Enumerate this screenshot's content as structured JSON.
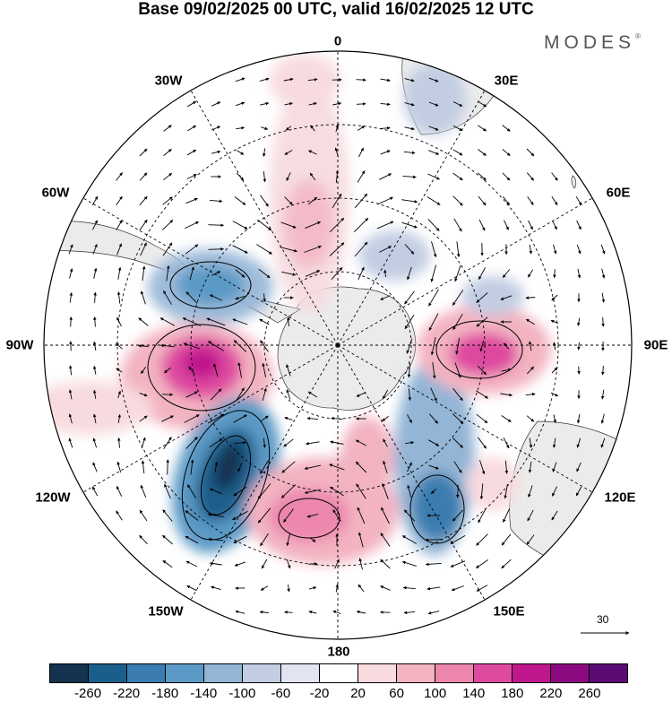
{
  "title": "Base 09/02/2025 00 UTC, valid 16/02/2025 12 UTC",
  "brand": "MODES",
  "brand_mark": "®",
  "longitude_labels": [
    "0",
    "30E",
    "60E",
    "90E",
    "120E",
    "150E",
    "180",
    "150W",
    "120W",
    "90W",
    "60W",
    "30W"
  ],
  "reference_vector": "30",
  "colorbar": {
    "ticks": [
      "-260",
      "-220",
      "-180",
      "-140",
      "-100",
      "-60",
      "-20",
      "20",
      "60",
      "100",
      "140",
      "180",
      "220",
      "260"
    ],
    "colors": [
      "#13334f",
      "#1a5e8c",
      "#3b7db0",
      "#5b9ac6",
      "#93b5d6",
      "#c2cde3",
      "#e3e4f1",
      "#ffffff",
      "#f8dbdf",
      "#f3b3c1",
      "#ec86ad",
      "#de4aa0",
      "#c0188c",
      "#8b0a80",
      "#5a0c74"
    ]
  },
  "map": {
    "land_color": "#ebebeb",
    "coast_color": "#333333"
  }
}
